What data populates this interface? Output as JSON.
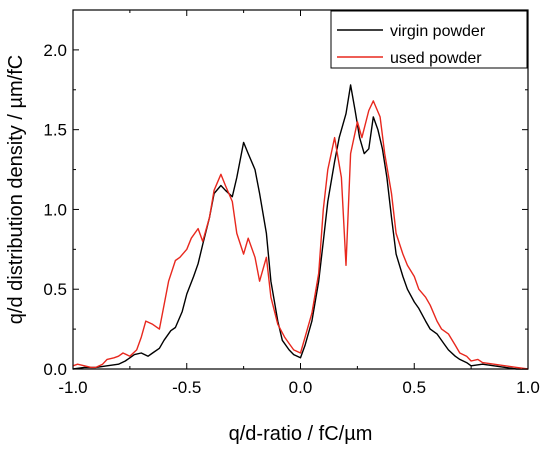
{
  "chart_data": {
    "type": "line",
    "title": "",
    "xlabel": "q/d-ratio / fC/µm",
    "ylabel": "q/d distribution density / µm/fC",
    "xlim": [
      -1.0,
      1.0
    ],
    "ylim": [
      0.0,
      2.25
    ],
    "xticks": [
      -1.0,
      -0.5,
      0.0,
      0.5,
      1.0
    ],
    "xtick_labels": [
      "-1.0",
      "-0.5",
      "0.0",
      "0.5",
      "1.0"
    ],
    "yticks": [
      0.0,
      0.5,
      1.0,
      1.5,
      2.0
    ],
    "ytick_labels": [
      "0.0",
      "0.5",
      "1.0",
      "1.5",
      "2.0"
    ],
    "grid": false,
    "legend_position": "top-right",
    "series": [
      {
        "name": "virgin powder",
        "color": "#000000",
        "x": [
          -1.0,
          -0.95,
          -0.9,
          -0.85,
          -0.8,
          -0.77,
          -0.75,
          -0.73,
          -0.7,
          -0.67,
          -0.65,
          -0.62,
          -0.6,
          -0.57,
          -0.55,
          -0.52,
          -0.5,
          -0.47,
          -0.45,
          -0.43,
          -0.4,
          -0.38,
          -0.35,
          -0.33,
          -0.3,
          -0.28,
          -0.25,
          -0.23,
          -0.2,
          -0.18,
          -0.15,
          -0.13,
          -0.1,
          -0.08,
          -0.05,
          -0.03,
          0.0,
          0.02,
          0.05,
          0.08,
          0.1,
          0.12,
          0.15,
          0.17,
          0.2,
          0.22,
          0.24,
          0.26,
          0.28,
          0.3,
          0.32,
          0.34,
          0.36,
          0.38,
          0.4,
          0.42,
          0.45,
          0.47,
          0.5,
          0.52,
          0.55,
          0.57,
          0.6,
          0.63,
          0.65,
          0.68,
          0.7,
          0.73,
          0.75,
          0.8,
          0.85,
          0.9,
          0.95,
          1.0
        ],
        "y": [
          0.0,
          0.01,
          0.01,
          0.02,
          0.03,
          0.05,
          0.07,
          0.09,
          0.1,
          0.08,
          0.1,
          0.13,
          0.18,
          0.24,
          0.26,
          0.36,
          0.47,
          0.58,
          0.66,
          0.78,
          0.95,
          1.1,
          1.15,
          1.12,
          1.08,
          1.2,
          1.42,
          1.35,
          1.25,
          1.1,
          0.85,
          0.55,
          0.3,
          0.18,
          0.12,
          0.09,
          0.07,
          0.15,
          0.3,
          0.55,
          0.8,
          1.05,
          1.3,
          1.45,
          1.6,
          1.78,
          1.62,
          1.45,
          1.35,
          1.38,
          1.58,
          1.5,
          1.38,
          1.2,
          0.95,
          0.72,
          0.58,
          0.5,
          0.42,
          0.38,
          0.3,
          0.25,
          0.22,
          0.16,
          0.12,
          0.08,
          0.06,
          0.04,
          0.02,
          0.03,
          0.02,
          0.01,
          0.0,
          0.0
        ]
      },
      {
        "name": "used powder",
        "color": "#e8281e",
        "x": [
          -1.0,
          -0.98,
          -0.95,
          -0.92,
          -0.9,
          -0.87,
          -0.85,
          -0.82,
          -0.8,
          -0.78,
          -0.75,
          -0.72,
          -0.7,
          -0.68,
          -0.65,
          -0.62,
          -0.6,
          -0.58,
          -0.55,
          -0.53,
          -0.5,
          -0.48,
          -0.45,
          -0.43,
          -0.4,
          -0.38,
          -0.35,
          -0.33,
          -0.3,
          -0.28,
          -0.25,
          -0.23,
          -0.2,
          -0.18,
          -0.15,
          -0.13,
          -0.1,
          -0.07,
          -0.05,
          -0.03,
          0.0,
          0.02,
          0.05,
          0.08,
          0.1,
          0.12,
          0.15,
          0.18,
          0.2,
          0.22,
          0.25,
          0.27,
          0.3,
          0.32,
          0.35,
          0.37,
          0.4,
          0.42,
          0.45,
          0.47,
          0.5,
          0.52,
          0.55,
          0.57,
          0.6,
          0.62,
          0.65,
          0.68,
          0.7,
          0.73,
          0.75,
          0.78,
          0.8,
          0.85,
          0.9,
          0.95,
          1.0
        ],
        "y": [
          0.02,
          0.03,
          0.02,
          0.01,
          0.01,
          0.03,
          0.06,
          0.07,
          0.08,
          0.1,
          0.08,
          0.12,
          0.2,
          0.3,
          0.28,
          0.25,
          0.4,
          0.55,
          0.68,
          0.7,
          0.75,
          0.82,
          0.88,
          0.8,
          0.95,
          1.12,
          1.22,
          1.15,
          1.05,
          0.85,
          0.72,
          0.82,
          0.7,
          0.55,
          0.7,
          0.45,
          0.28,
          0.2,
          0.16,
          0.12,
          0.1,
          0.2,
          0.35,
          0.6,
          1.0,
          1.25,
          1.45,
          1.2,
          0.65,
          1.35,
          1.55,
          1.45,
          1.62,
          1.68,
          1.58,
          1.35,
          1.1,
          0.85,
          0.72,
          0.65,
          0.58,
          0.5,
          0.45,
          0.4,
          0.3,
          0.25,
          0.22,
          0.15,
          0.1,
          0.08,
          0.05,
          0.06,
          0.04,
          0.03,
          0.02,
          0.01,
          0.0
        ]
      }
    ]
  }
}
